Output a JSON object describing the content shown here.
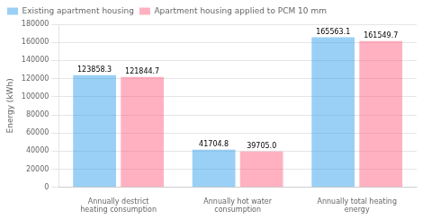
{
  "chart_data": {
    "type": "bar",
    "categories": [
      "Annually destrict heating consumption",
      "Annually hot water consumption",
      "Annually total heating energy"
    ],
    "series": [
      {
        "name": "Existing apartment housing",
        "values": [
          123858.3,
          41704.8,
          165563.1
        ],
        "value_labels": [
          "123858.3",
          "41704.8",
          "165563.1"
        ]
      },
      {
        "name": "Apartment housing applied to PCM 10 mm",
        "values": [
          121844.7,
          39705.0,
          161549.7
        ],
        "value_labels": [
          "121844.7",
          "39705.0",
          "161549.7"
        ]
      }
    ],
    "ylabel": "Energy (kWh)",
    "ylim": [
      0,
      180000
    ],
    "yticks": [
      0,
      20000,
      40000,
      60000,
      80000,
      100000,
      120000,
      140000,
      160000,
      180000
    ],
    "grid": true,
    "legend": "upper left",
    "data_labels": true
  }
}
